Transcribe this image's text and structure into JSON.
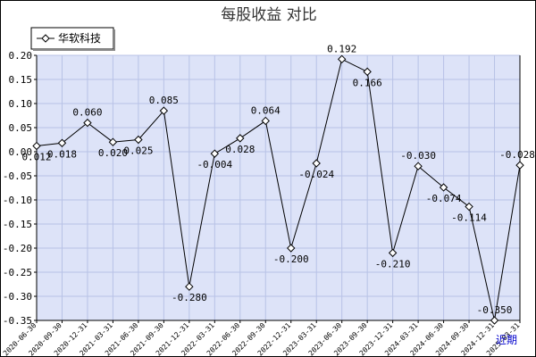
{
  "chart_data": {
    "type": "line",
    "title": "每股收益  对比",
    "categories": [
      "2020-06-30",
      "2020-09-30",
      "2020-12-31",
      "2021-03-31",
      "2021-06-30",
      "2021-09-30",
      "2021-12-31",
      "2022-03-31",
      "2022-06-30",
      "2022-09-30",
      "2022-12-31",
      "2023-03-31",
      "2023-06-30",
      "2023-09-30",
      "2023-12-31",
      "2024-03-31",
      "2024-06-30",
      "2024-09-30",
      "2024-12-31",
      "2025-03-31"
    ],
    "series": [
      {
        "name": "华软科技",
        "values": [
          0.012,
          0.018,
          0.06,
          0.02,
          0.025,
          0.085,
          -0.28,
          -0.004,
          0.028,
          0.064,
          -0.2,
          -0.024,
          0.192,
          0.166,
          -0.21,
          -0.03,
          -0.074,
          -0.114,
          -0.35,
          -0.028
        ],
        "value_labels": [
          "0.012",
          "0.018",
          "0.060",
          "0.020",
          "0.025",
          "0.085",
          "-0.280",
          "-0.004",
          "0.028",
          "0.064",
          "-0.200",
          "-0.024",
          "0.192",
          "0.166",
          "-0.210",
          "-0.030",
          "-0.074",
          "-0.114",
          "-0.350",
          "-0.028"
        ],
        "color": "#000000"
      }
    ],
    "ylim": [
      -0.35,
      0.2
    ],
    "yticks": [
      "0.20",
      "0.15",
      "0.10",
      "0.05",
      "0.00",
      "-0.05",
      "-0.10",
      "-0.15",
      "-0.20",
      "-0.25",
      "-0.30",
      "-0.35"
    ],
    "grid": true,
    "legend": "top-left",
    "plot_background": "#dde3f8",
    "gridline_color": "#b8c2e6"
  },
  "corner_link": "近期"
}
